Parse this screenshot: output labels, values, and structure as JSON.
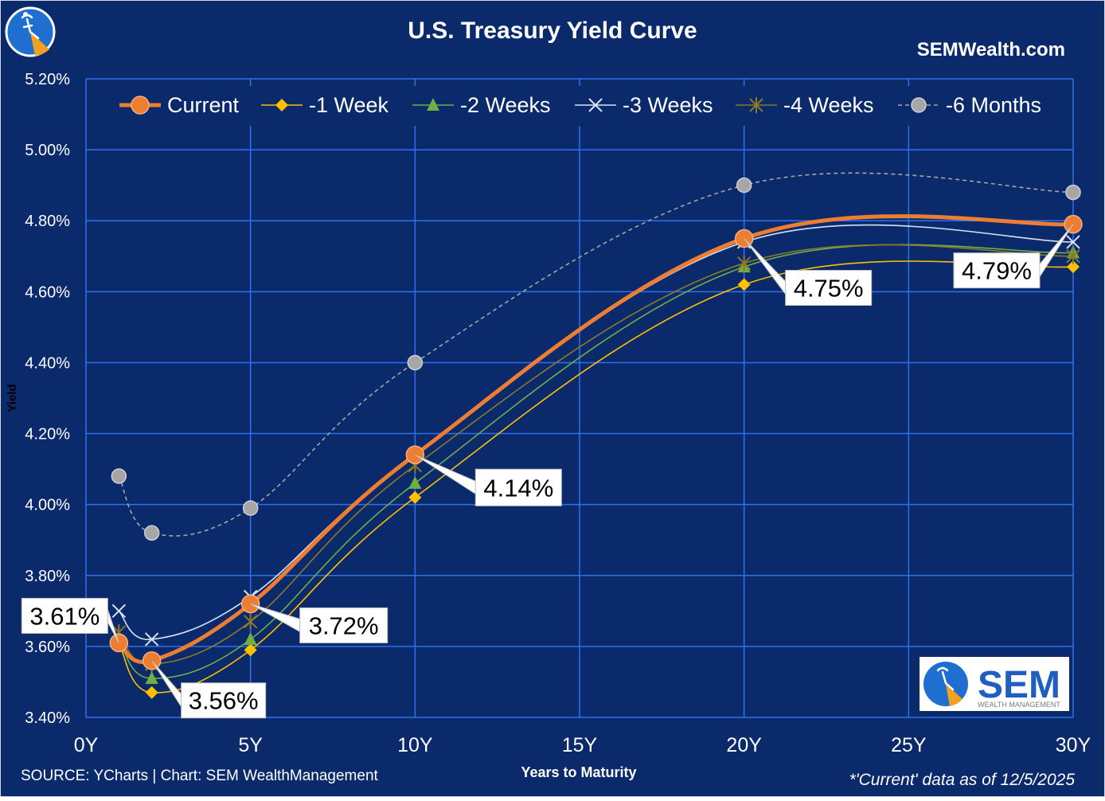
{
  "header": {
    "title": "U.S. Treasury Yield Curve",
    "site": "SEMWealth.com"
  },
  "footer": {
    "source": "SOURCE: YCharts | Chart: SEM WealthManagement",
    "note": "*'Current' data as of 12/5/2025"
  },
  "logo": {
    "brand": "SEM",
    "tagline": "WEALTH MANAGEMENT",
    "icon": "sem-swimmer-logo-icon"
  },
  "colors": {
    "background": "#0a2a6b",
    "grid": "#2f6ff0",
    "current": "#ed7d31",
    "week1": "#ffc000",
    "week2": "#70ad47",
    "week3": "#d9e2f3",
    "week4": "#8a7a2a",
    "months6": "#a6a6a6"
  },
  "chart_data": {
    "type": "line",
    "xlabel": "Years to Maturity",
    "ylabel": "Yield",
    "xlim": [
      0,
      30
    ],
    "ylim": [
      3.4,
      5.2
    ],
    "x_ticks": [
      {
        "value": 0,
        "label": "0Y"
      },
      {
        "value": 5,
        "label": "5Y"
      },
      {
        "value": 10,
        "label": "10Y"
      },
      {
        "value": 15,
        "label": "15Y"
      },
      {
        "value": 20,
        "label": "20Y"
      },
      {
        "value": 25,
        "label": "25Y"
      },
      {
        "value": 30,
        "label": "30Y"
      }
    ],
    "y_ticks": [
      {
        "value": 3.4,
        "label": "3.40%"
      },
      {
        "value": 3.6,
        "label": "3.60%"
      },
      {
        "value": 3.8,
        "label": "3.80%"
      },
      {
        "value": 4.0,
        "label": "4.00%"
      },
      {
        "value": 4.2,
        "label": "4.20%"
      },
      {
        "value": 4.4,
        "label": "4.40%"
      },
      {
        "value": 4.6,
        "label": "4.60%"
      },
      {
        "value": 4.8,
        "label": "4.80%"
      },
      {
        "value": 5.0,
        "label": "5.00%"
      },
      {
        "value": 5.2,
        "label": "5.20%"
      }
    ],
    "grid": true,
    "legend_position": "top",
    "x": [
      1,
      2,
      5,
      10,
      20,
      30
    ],
    "series": [
      {
        "name": "Current",
        "values": [
          3.61,
          3.56,
          3.72,
          4.14,
          4.75,
          4.79
        ],
        "marker": "circle"
      },
      {
        "name": "-1 Week",
        "values": [
          3.61,
          3.47,
          3.59,
          4.02,
          4.62,
          4.67
        ],
        "marker": "diamond"
      },
      {
        "name": "-2 Weeks",
        "values": [
          3.62,
          3.51,
          3.62,
          4.06,
          4.67,
          4.71
        ],
        "marker": "triangle"
      },
      {
        "name": "-3 Weeks",
        "values": [
          3.7,
          3.62,
          3.74,
          4.14,
          4.74,
          4.74
        ],
        "marker": "x"
      },
      {
        "name": "-4 Weeks",
        "values": [
          3.64,
          3.55,
          3.67,
          4.11,
          4.68,
          4.7
        ],
        "marker": "star"
      },
      {
        "name": "-6 Months",
        "values": [
          4.08,
          3.92,
          3.99,
          4.4,
          4.9,
          4.88
        ],
        "marker": "circle"
      }
    ],
    "annotations": [
      {
        "x": 1,
        "y": 3.61,
        "text": "3.61%"
      },
      {
        "x": 2,
        "y": 3.56,
        "text": "3.56%"
      },
      {
        "x": 5,
        "y": 3.72,
        "text": "3.72%"
      },
      {
        "x": 10,
        "y": 4.14,
        "text": "4.14%"
      },
      {
        "x": 20,
        "y": 4.75,
        "text": "4.75%"
      },
      {
        "x": 30,
        "y": 4.79,
        "text": "4.79%"
      }
    ]
  }
}
